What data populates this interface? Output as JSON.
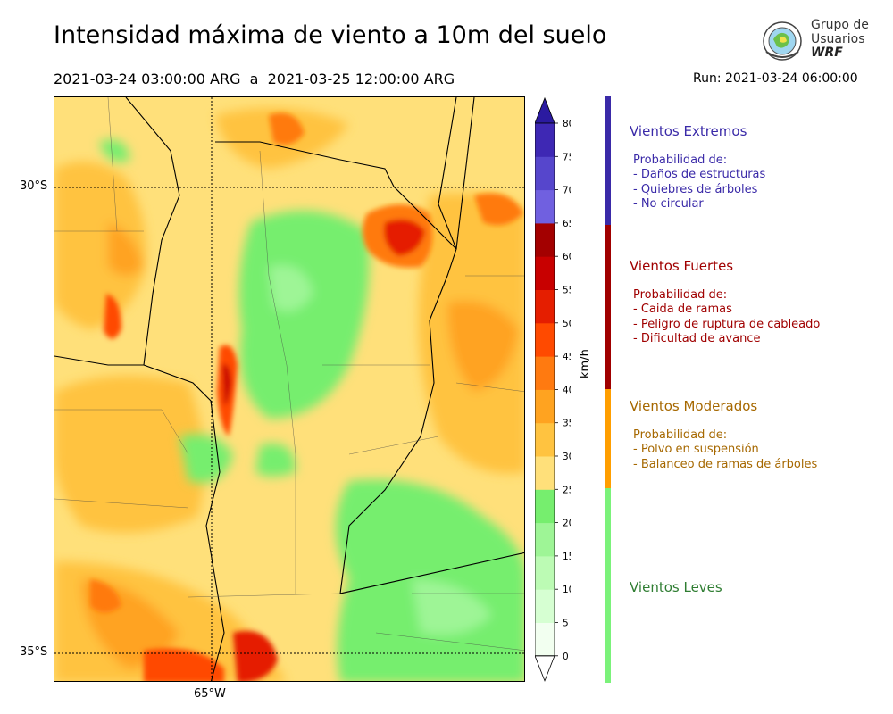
{
  "header": {
    "title": "Intensidad máxima de viento a 10m del suelo",
    "period": "2021-03-24 03:00:00 ARG  a  2021-03-25 12:00:00 ARG",
    "run": "Run: 2021-03-24 06:00:00"
  },
  "logo": {
    "line1": "Grupo de",
    "line2": "Usuarios",
    "line3": "WRF"
  },
  "map": {
    "lat_labels": [
      "30°S",
      "35°S"
    ],
    "lon_labels": [
      "65°W"
    ]
  },
  "colorbar": {
    "units": "km/h",
    "ticks": [
      "80",
      "75",
      "70",
      "65",
      "60",
      "55",
      "50",
      "45",
      "40",
      "35",
      "30",
      "25",
      "20",
      "15",
      "10",
      "5",
      "0"
    ],
    "levels": [
      {
        "value": 0,
        "color": "#f2fff0"
      },
      {
        "value": 5,
        "color": "#d6ffd2"
      },
      {
        "value": 10,
        "color": "#bcfbb4"
      },
      {
        "value": 15,
        "color": "#9ef596"
      },
      {
        "value": 20,
        "color": "#76ee6e"
      },
      {
        "value": 25,
        "color": "#ffe07a"
      },
      {
        "value": 30,
        "color": "#ffc340"
      },
      {
        "value": 35,
        "color": "#ffa320"
      },
      {
        "value": 40,
        "color": "#ff7a10"
      },
      {
        "value": 45,
        "color": "#ff4a00"
      },
      {
        "value": 50,
        "color": "#e51e00"
      },
      {
        "value": 55,
        "color": "#c80000"
      },
      {
        "value": 60,
        "color": "#a30000"
      },
      {
        "value": 65,
        "color": "#7060e0"
      },
      {
        "value": 70,
        "color": "#5646cc"
      },
      {
        "value": 75,
        "color": "#3e28b4"
      }
    ],
    "over_color": "#2b1aa0",
    "under_color": "#ffffff"
  },
  "categories": [
    {
      "name": "Vientos Extremos",
      "color": "#3a2aa8",
      "bar_color": "#3a2aa8",
      "intro": "Probabilidad de:",
      "items": [
        "- Daños de estructuras",
        "- Quiebres de árboles",
        "- No circular"
      ]
    },
    {
      "name": "Vientos Fuertes",
      "color": "#a00000",
      "bar_color": "#a00000",
      "intro": "Probabilidad de:",
      "items": [
        "- Caida de ramas",
        "- Peligro de ruptura de cableado",
        "- Dificultad de avance"
      ]
    },
    {
      "name": "Vientos Moderados",
      "color": "#a66800",
      "bar_color": "#ff9e00",
      "intro": "Probabilidad de:",
      "items": [
        "- Polvo en suspensión",
        "- Balanceo de ramas de árboles"
      ]
    },
    {
      "name": "Vientos Leves",
      "color": "#2f7d32",
      "bar_color": "#7bf27a",
      "intro": "",
      "items": []
    }
  ]
}
